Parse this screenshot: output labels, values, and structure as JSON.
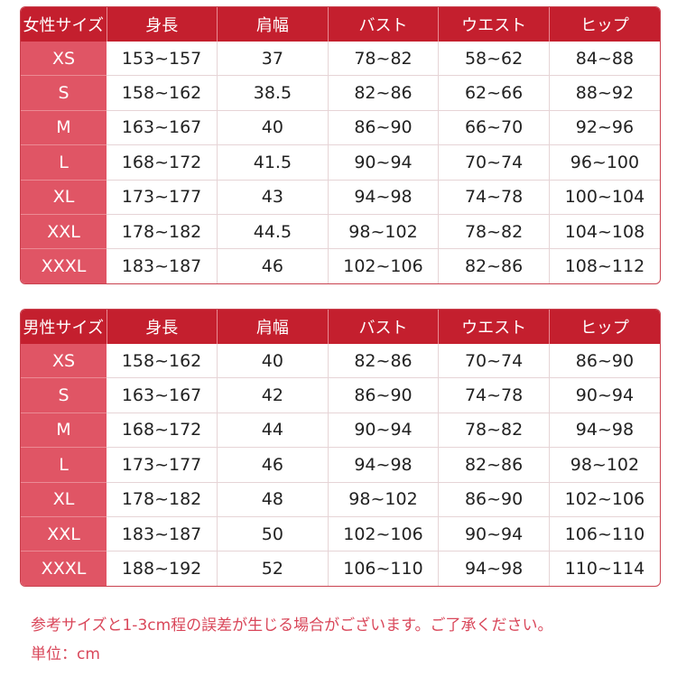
{
  "tables": [
    {
      "headers": [
        "女性サイズ",
        "身長",
        "肩幅",
        "バスト",
        "ウエスト",
        "ヒップ"
      ],
      "rows": [
        [
          "XS",
          "153~157",
          "37",
          "78~82",
          "58~62",
          "84~88"
        ],
        [
          "S",
          "158~162",
          "38.5",
          "82~86",
          "62~66",
          "88~92"
        ],
        [
          "M",
          "163~167",
          "40",
          "86~90",
          "66~70",
          "92~96"
        ],
        [
          "L",
          "168~172",
          "41.5",
          "90~94",
          "70~74",
          "96~100"
        ],
        [
          "XL",
          "173~177",
          "43",
          "94~98",
          "74~78",
          "100~104"
        ],
        [
          "XXL",
          "178~182",
          "44.5",
          "98~102",
          "78~82",
          "104~108"
        ],
        [
          "XXXL",
          "183~187",
          "46",
          "102~106",
          "82~86",
          "108~112"
        ]
      ]
    },
    {
      "headers": [
        "男性サイズ",
        "身長",
        "肩幅",
        "バスト",
        "ウエスト",
        "ヒップ"
      ],
      "rows": [
        [
          "XS",
          "158~162",
          "40",
          "82~86",
          "70~74",
          "86~90"
        ],
        [
          "S",
          "163~167",
          "42",
          "86~90",
          "74~78",
          "90~94"
        ],
        [
          "M",
          "168~172",
          "44",
          "90~94",
          "78~82",
          "94~98"
        ],
        [
          "L",
          "173~177",
          "46",
          "94~98",
          "82~86",
          "98~102"
        ],
        [
          "XL",
          "178~182",
          "48",
          "98~102",
          "86~90",
          "102~106"
        ],
        [
          "XXL",
          "183~187",
          "50",
          "102~106",
          "90~94",
          "106~110"
        ],
        [
          "XXXL",
          "188~192",
          "52",
          "106~110",
          "94~98",
          "110~114"
        ]
      ]
    }
  ],
  "notes": {
    "tolerance": "参考サイズと1-3cm程の誤差が生じる場合がございます。ご了承ください。",
    "unit": "単位：cm"
  },
  "colors": {
    "header": "#c41f2e",
    "size_column": "#e05565",
    "note_text": "#d9475a"
  }
}
